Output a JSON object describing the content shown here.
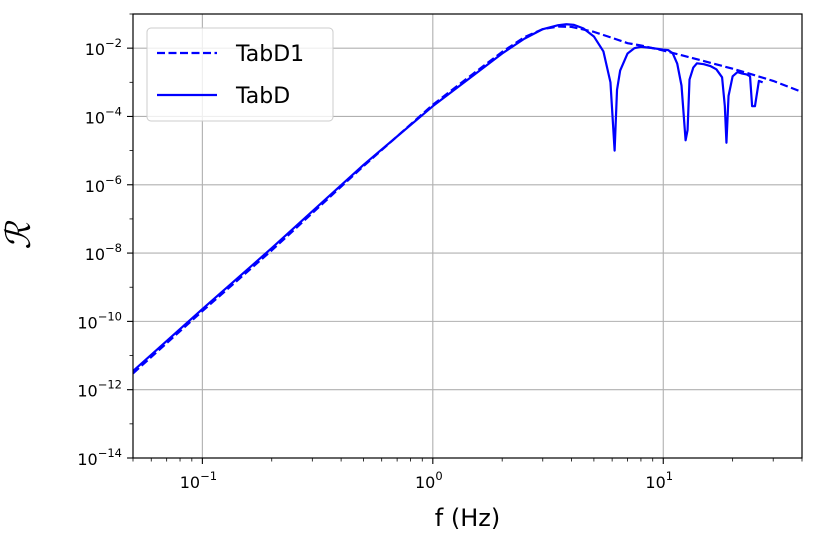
{
  "chart_data": {
    "type": "line",
    "xlabel": "f (Hz)",
    "ylabel": "ℛ",
    "xscale": "log",
    "yscale": "log",
    "xlim": [
      0.05,
      40
    ],
    "ylim": [
      1e-14,
      0.1
    ],
    "grid": true,
    "legend_position": "top-left",
    "x_ticks": [
      {
        "base": "10",
        "exp": "−1",
        "value": 0.1
      },
      {
        "base": "10",
        "exp": "0",
        "value": 1
      },
      {
        "base": "10",
        "exp": "1",
        "value": 10
      }
    ],
    "y_ticks": [
      {
        "base": "10",
        "exp": "−2",
        "value": 0.01
      },
      {
        "base": "10",
        "exp": "−4",
        "value": 0.0001
      },
      {
        "base": "10",
        "exp": "−6",
        "value": 1e-06
      },
      {
        "base": "10",
        "exp": "−8",
        "value": 1e-08
      },
      {
        "base": "10",
        "exp": "−10",
        "value": 1e-10
      },
      {
        "base": "10",
        "exp": "−12",
        "value": 1e-12
      },
      {
        "base": "10",
        "exp": "−14",
        "value": 1e-14
      }
    ],
    "series": [
      {
        "name": "TabD1",
        "color": "#0000ff",
        "style": "dashed",
        "x": [
          0.05,
          0.1,
          0.2,
          0.5,
          1,
          1.5,
          2,
          2.5,
          3,
          3.5,
          4,
          5,
          6,
          7,
          8,
          10,
          12,
          15,
          20,
          25,
          30,
          40
        ],
        "y": [
          3e-12,
          2e-10,
          1.2e-08,
          3.5e-06,
          0.00022,
          0.0018,
          0.0078,
          0.021,
          0.036,
          0.043,
          0.042,
          0.03,
          0.02,
          0.014,
          0.012,
          0.0085,
          0.0062,
          0.0042,
          0.0025,
          0.0016,
          0.0011,
          0.00052
        ]
      },
      {
        "name": "TabD",
        "color": "#0000ff",
        "style": "solid",
        "x": [
          0.05,
          0.1,
          0.2,
          0.5,
          1,
          1.5,
          2,
          2.5,
          3,
          3.5,
          3.8,
          4.1,
          4.5,
          5,
          5.5,
          5.9,
          6.15,
          6.3,
          6.5,
          7,
          7.5,
          8,
          9,
          10,
          10.5,
          11,
          11.5,
          12,
          12.5,
          12.75,
          13,
          13.5,
          14,
          15,
          16,
          17,
          18,
          18.5,
          18.8,
          19.2,
          20,
          21,
          22,
          23,
          23.8,
          24.3,
          25,
          26,
          27
        ],
        "y": [
          3.5e-12,
          2.3e-10,
          1.4e-08,
          3.8e-06,
          0.0002,
          0.0016,
          0.007,
          0.019,
          0.036,
          0.047,
          0.05,
          0.048,
          0.038,
          0.022,
          0.008,
          0.001,
          1e-05,
          0.0006,
          0.0022,
          0.007,
          0.01,
          0.011,
          0.01,
          0.009,
          0.0088,
          0.007,
          0.0035,
          0.0008,
          2e-05,
          4e-05,
          0.0012,
          0.0027,
          0.0036,
          0.0034,
          0.003,
          0.0024,
          0.0014,
          0.0002,
          1.7e-05,
          0.0004,
          0.0015,
          0.002,
          0.0018,
          0.0017,
          0.0015,
          0.0002,
          0.0002,
          0.0011,
          0.001
        ]
      }
    ]
  }
}
